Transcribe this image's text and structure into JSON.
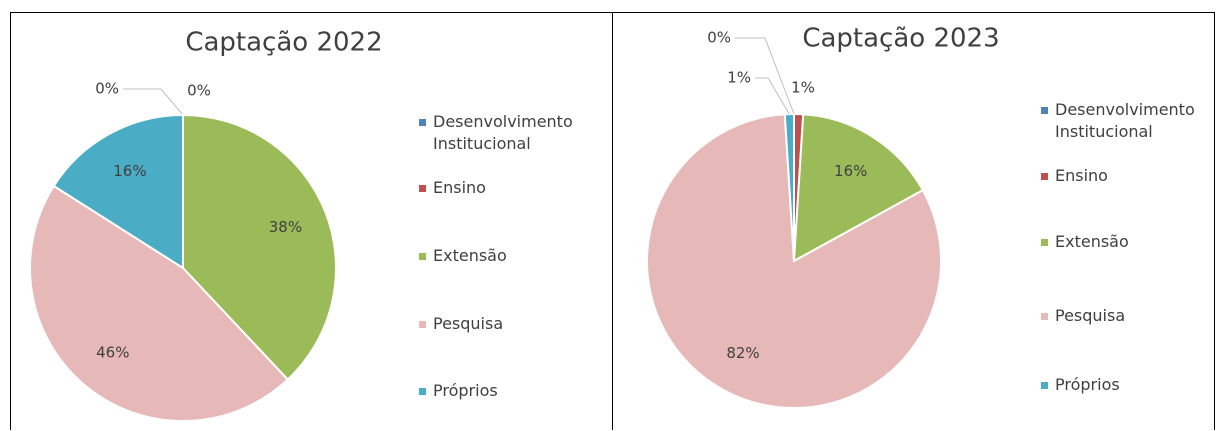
{
  "chart_data": [
    {
      "type": "pie",
      "title": "Captação 2022",
      "categories": [
        "Desenvolvimento Institucional",
        "Ensino",
        "Extensão",
        "Pesquisa",
        "Próprios"
      ],
      "values": [
        0,
        0,
        38,
        46,
        16
      ],
      "value_labels": [
        "0%",
        "0%",
        "38%",
        "46%",
        "16%"
      ],
      "colors": [
        "#4f81bd",
        "#c0504d",
        "#9bbb59",
        "#e6b9b8",
        "#4bacc6"
      ],
      "legend": "right"
    },
    {
      "type": "pie",
      "title": "Captação 2023",
      "categories": [
        "Desenvolvimento Institucional",
        "Ensino",
        "Extensão",
        "Pesquisa",
        "Próprios"
      ],
      "values": [
        0,
        1,
        16,
        82,
        1
      ],
      "value_labels": [
        "0%",
        "1%",
        "16%",
        "82%",
        "1%"
      ],
      "colors": [
        "#4f81bd",
        "#c0504d",
        "#9bbb59",
        "#e6b9b8",
        "#4bacc6"
      ],
      "legend": "right"
    }
  ]
}
